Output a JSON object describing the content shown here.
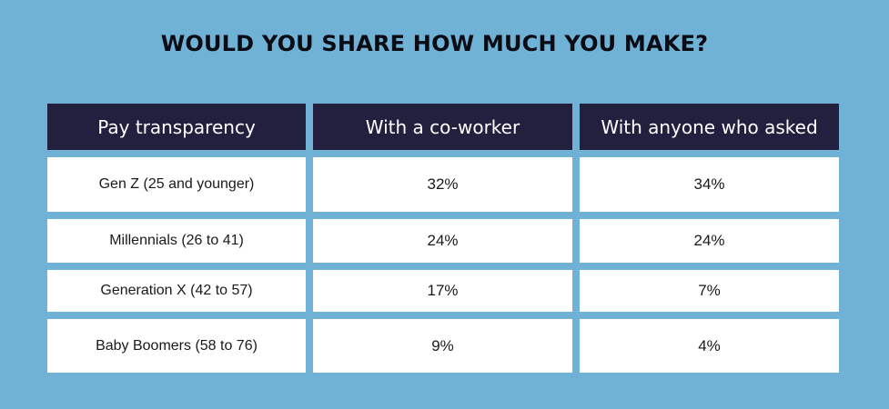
{
  "chart_data": {
    "type": "table",
    "title": "WOULD YOU SHARE HOW MUCH YOU MAKE?",
    "columns": [
      "Pay transparency",
      "With a co-worker",
      "With anyone who asked"
    ],
    "rows": [
      [
        "Gen Z (25 and younger)",
        "32%",
        "34%"
      ],
      [
        "Millennials (26 to 41)",
        "24%",
        "24%"
      ],
      [
        "Generation X (42 to 57)",
        "17%",
        "7%"
      ],
      [
        "Baby Boomers (58 to 76)",
        "9%",
        "4%"
      ]
    ]
  },
  "colors": {
    "background": "#70b1d6",
    "header_fill": "#231f3f",
    "header_text": "#ffffff",
    "cell_fill": "#ffffff",
    "title_text": "#0b0b14"
  }
}
